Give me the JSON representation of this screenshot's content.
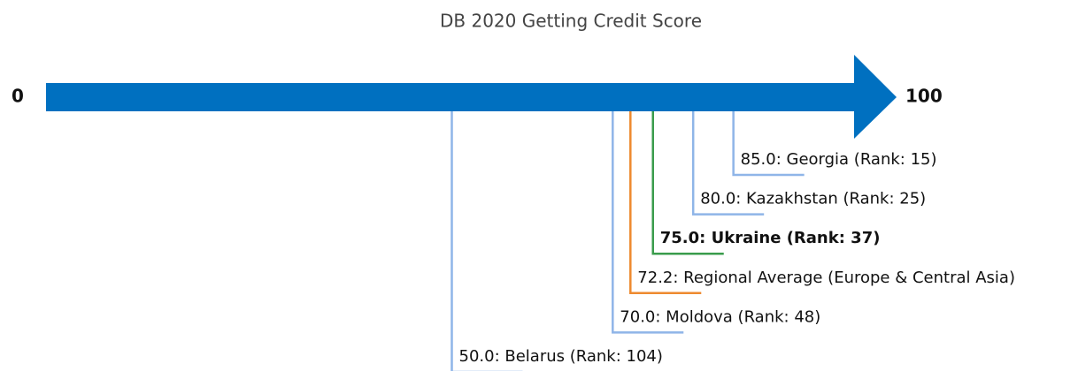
{
  "chart_data": {
    "type": "number-line",
    "title": "DB 2020 Getting Credit Score",
    "xlim": [
      0,
      100
    ],
    "xticks": [
      0,
      100
    ],
    "values": [
      85,
      80,
      75,
      72.2,
      70,
      50
    ],
    "value_labels": [
      "85.0: Georgia (Rank: 15)",
      "80.0: Kazakhstan (Rank: 25)",
      "75.0: Ukraine (Rank: 37)",
      "72.2: Regional Average (Europe & Central Asia)",
      "70.0: Moldova (Rank: 48)",
      "50.0: Belarus (Rank: 104)"
    ],
    "colors": [
      "#8fb5e8",
      "#8fb5e8",
      "#3a9c4c",
      "#ee8a2f",
      "#8fb5e8",
      "#8fb5e8"
    ],
    "bold": [
      false,
      false,
      true,
      false,
      false,
      false
    ],
    "arrow_color": "#0070c0"
  }
}
